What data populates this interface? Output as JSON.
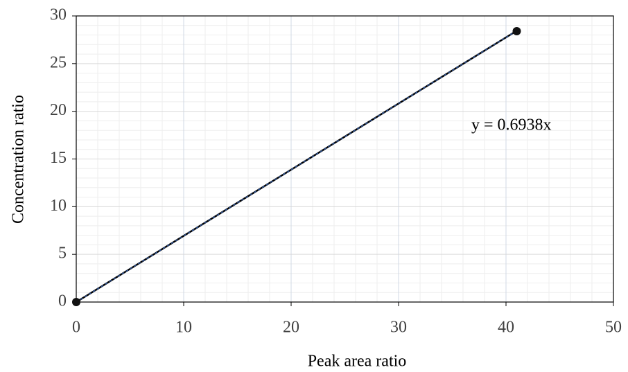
{
  "chart_data": {
    "type": "scatter",
    "x_label": "Peak area ratio",
    "y_label": "Concentration ratio",
    "series": [
      {
        "x": [
          0,
          41
        ],
        "values": [
          0,
          28.4
        ],
        "color": "#111111"
      }
    ],
    "trendline": {
      "slope": 0.6938,
      "label": "y = 0.6938x",
      "color": "#2f5597"
    },
    "xlim": [
      0,
      50
    ],
    "xticks": [
      0,
      10,
      20,
      30,
      40,
      50
    ],
    "ylim": [
      0,
      30
    ],
    "yticks": [
      0,
      5,
      10,
      15,
      20,
      25,
      30
    ],
    "grid": true,
    "minor_grid": true
  }
}
